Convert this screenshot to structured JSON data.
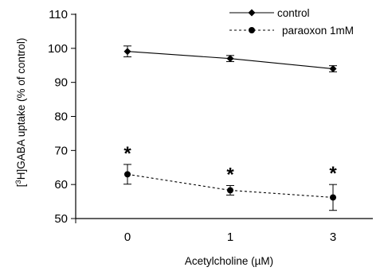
{
  "chart_data": {
    "type": "line",
    "xlabel": "Acetylcholine (µM)",
    "ylabel_parts": [
      "[",
      "3",
      "H]GABA uptake (% of control)"
    ],
    "ylim": [
      50,
      110
    ],
    "yticks": [
      50,
      60,
      70,
      80,
      90,
      100,
      110
    ],
    "categories": [
      "0",
      "1",
      "3"
    ],
    "grid": false,
    "legend_position": "top-right",
    "series": [
      {
        "name": "control",
        "style": "solid",
        "marker": "diamond",
        "values": [
          99.1,
          97.0,
          94.0
        ],
        "errors": [
          1.6,
          0.9,
          0.9
        ]
      },
      {
        "name": "paraoxon 1mM",
        "style": "dotted",
        "marker": "circle",
        "values": [
          63.0,
          58.3,
          56.2
        ],
        "errors": [
          2.9,
          1.4,
          3.8
        ]
      }
    ],
    "annotations": [
      "*",
      "*",
      "*"
    ],
    "colors": {
      "axis": "#000000",
      "series": "#000000"
    }
  }
}
